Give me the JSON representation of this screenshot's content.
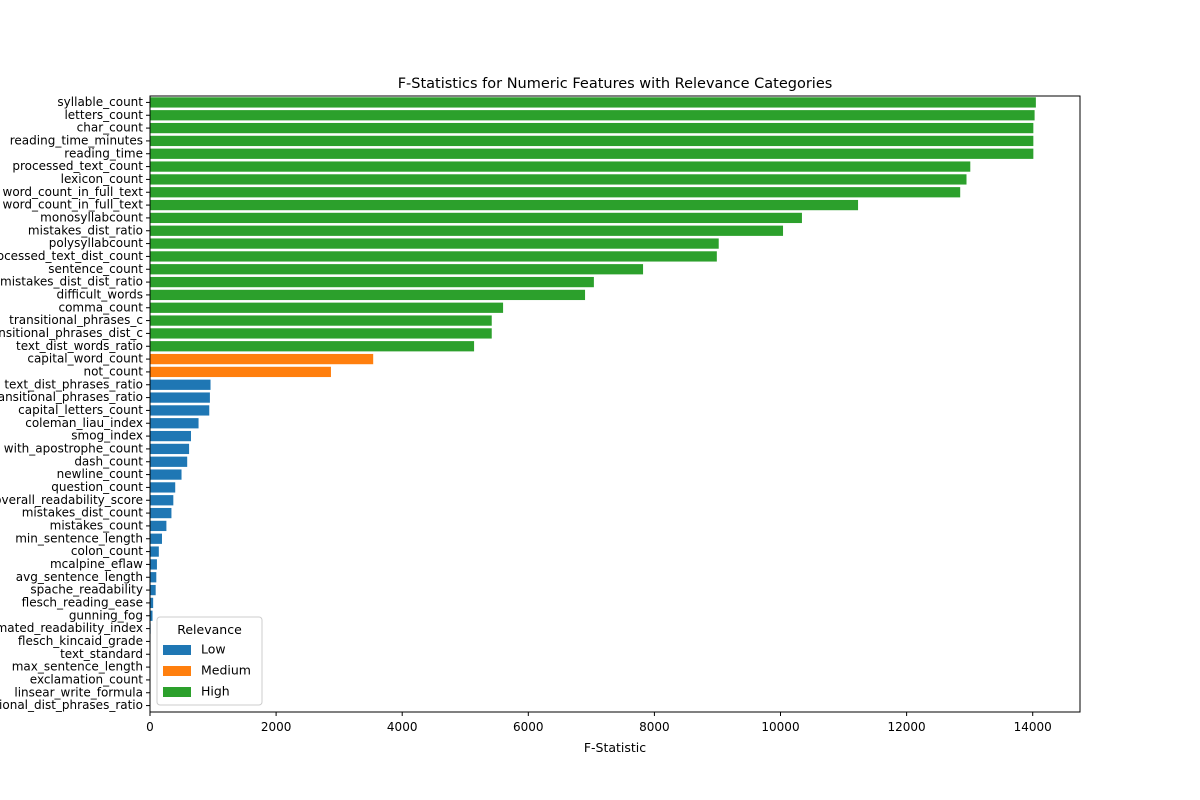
{
  "chart_data": {
    "type": "bar",
    "orientation": "horizontal",
    "title": "F-Statistics for Numeric Features with Relevance Categories",
    "xlabel": "F-Statistic",
    "ylabel": "",
    "xlim": [
      0,
      14750
    ],
    "xticks": [
      0,
      2000,
      4000,
      6000,
      8000,
      10000,
      12000,
      14000
    ],
    "grid": false,
    "legend": {
      "title": "Relevance",
      "placement": "lower-left",
      "entries": [
        {
          "label": "Low",
          "color": "#1f77b4"
        },
        {
          "label": "Medium",
          "color": "#ff7f0e"
        },
        {
          "label": "High",
          "color": "#2ca02c"
        }
      ]
    },
    "categories": [
      "syllable_count",
      "letters_count",
      "char_count",
      "reading_time_minutes",
      "reading_time",
      "processed_text_count",
      "lexicon_count",
      "word_count_in_full_text",
      "word_count_in_full_text",
      "monosyllabcount",
      "mistakes_dist_ratio",
      "polysyllabcount",
      "processed_text_dist_count",
      "sentence_count",
      "mistakes_dist_dist_ratio",
      "difficult_words",
      "comma_count",
      "transitional_phrases_c",
      "transitional_phrases_dist_c",
      "text_dist_words_ratio",
      "capital_word_count",
      "not_count",
      "text_dist_phrases_ratio",
      "transitional_phrases_ratio",
      "capital_letters_count",
      "coleman_liau_index",
      "smog_index",
      "with_apostrophe_count",
      "dash_count",
      "newline_count",
      "question_count",
      "overall_readability_score",
      "mistakes_dist_count",
      "mistakes_count",
      "min_sentence_length",
      "colon_count",
      "mcalpine_eflaw",
      "avg_sentence_length",
      "spache_readability",
      "flesch_reading_ease",
      "gunning_fog",
      "automated_readability_index",
      "flesch_kincaid_grade",
      "text_standard",
      "max_sentence_length",
      "exclamation_count",
      "linsear_write_formula",
      "transitional_dist_phrases_ratio"
    ],
    "values": [
      14050,
      14030,
      14010,
      14010,
      14010,
      13010,
      12950,
      12850,
      11230,
      10340,
      10040,
      9020,
      8990,
      7820,
      7040,
      6900,
      5600,
      5420,
      5420,
      5140,
      3540,
      2870,
      960,
      950,
      940,
      770,
      650,
      620,
      590,
      500,
      400,
      370,
      340,
      260,
      190,
      140,
      110,
      100,
      90,
      50,
      40,
      10,
      8,
      6,
      5,
      4,
      3,
      2
    ],
    "relevance": [
      "High",
      "High",
      "High",
      "High",
      "High",
      "High",
      "High",
      "High",
      "High",
      "High",
      "High",
      "High",
      "High",
      "High",
      "High",
      "High",
      "High",
      "High",
      "High",
      "High",
      "Medium",
      "Medium",
      "Low",
      "Low",
      "Low",
      "Low",
      "Low",
      "Low",
      "Low",
      "Low",
      "Low",
      "Low",
      "Low",
      "Low",
      "Low",
      "Low",
      "Low",
      "Low",
      "Low",
      "Low",
      "Low",
      "Low",
      "Low",
      "Low",
      "Low",
      "Low",
      "Low",
      "Low"
    ]
  }
}
